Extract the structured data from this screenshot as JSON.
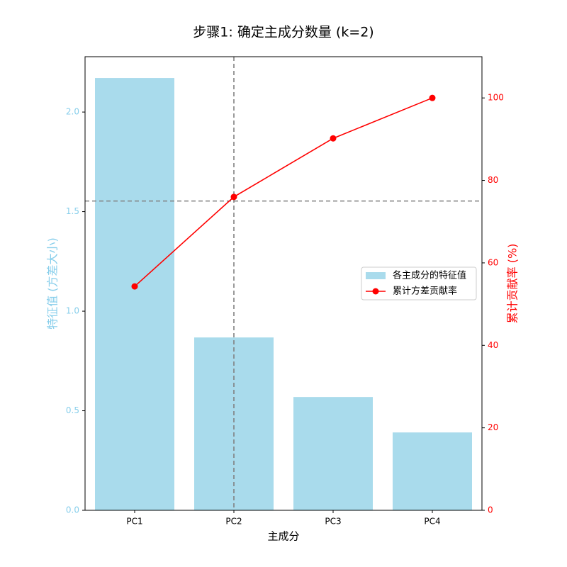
{
  "chart_data": {
    "type": "bar_line",
    "title": "步骤1: 确定主成分数量 (k=2)",
    "x_label": "主成分",
    "y_label": "特征值 (方差大小)",
    "y2_label": "累计贡献率 (%)",
    "categories": [
      "PC1",
      "PC2",
      "PC3",
      "PC4"
    ],
    "series": [
      {
        "name": "各主成分的特征值",
        "type": "bar",
        "color": "#a9dbec",
        "values": [
          2.171,
          0.868,
          0.569,
          0.391
        ]
      },
      {
        "name": "累计方差贡献率",
        "type": "line",
        "axis": "y2",
        "color": "#ff0000",
        "values": [
          54.3,
          76.0,
          90.2,
          100
        ]
      }
    ],
    "ylim": [
      0,
      2.278
    ],
    "yticks": [
      {
        "value": 0,
        "label": "0.0"
      },
      0.5,
      {
        "value": 1,
        "label": "1.0"
      },
      1.5,
      {
        "value": 2,
        "label": "2.0"
      }
    ],
    "y_color": "#87ceeb",
    "y2lim": [
      0,
      110
    ],
    "y2ticks": [
      0,
      20,
      40,
      60,
      80,
      100
    ],
    "y2_color": "#ff0000",
    "hline": {
      "value": 75,
      "axis": "y2",
      "color": "#808080"
    },
    "vline": {
      "category": "PC2",
      "color": "#808080"
    },
    "legend": "center right"
  }
}
